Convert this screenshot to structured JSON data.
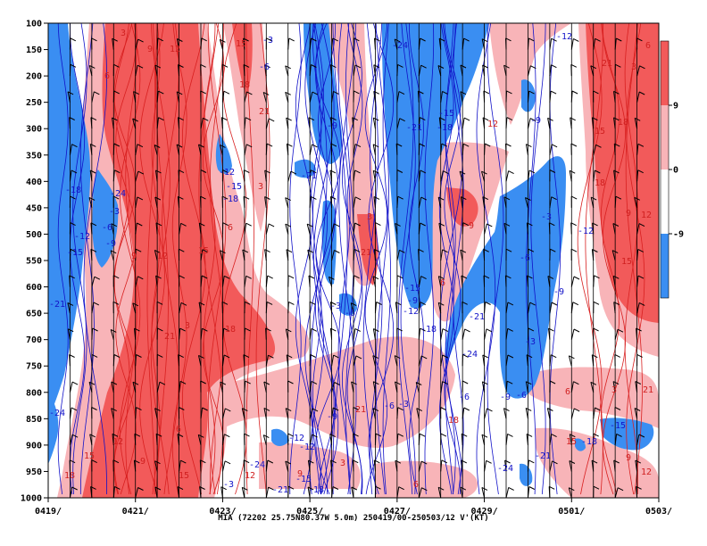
{
  "chart_data": {
    "type": "heatmap",
    "caption": "MIA (72202 25.75N80.37W 5.0m) 250419/00-250503/12 V'(KT)",
    "x_ticks": [
      "0419/",
      "0421/",
      "0423/",
      "0425/",
      "0427/",
      "0429/",
      "0501/",
      "0503/"
    ],
    "y_ticks": [
      "100",
      "150",
      "200",
      "250",
      "300",
      "350",
      "400",
      "450",
      "500",
      "550",
      "600",
      "650",
      "700",
      "750",
      "800",
      "850",
      "900",
      "950",
      "1000"
    ],
    "y_axis": "pressure (hPa), reversed, 100 at top",
    "colorbar": {
      "labels": [
        "9",
        "0",
        "-9"
      ],
      "colors": [
        "#f25a5a",
        "#f8b4b8",
        "#ffffff",
        "#3a8ef2"
      ]
    },
    "contour_labels_positive": [
      "3",
      "6",
      "9",
      "12",
      "15",
      "18",
      "21"
    ],
    "contour_labels_negative": [
      "-3",
      "-6",
      "-9",
      "-12",
      "-15",
      "-18",
      "-21",
      "-24"
    ],
    "grid": true,
    "colors": {
      "positive_strong": "#f25a5a",
      "positive_weak": "#f8b4b8",
      "negative": "#3a8ef2",
      "pos_line": "#d82020",
      "neg_line": "#1010c8"
    }
  }
}
